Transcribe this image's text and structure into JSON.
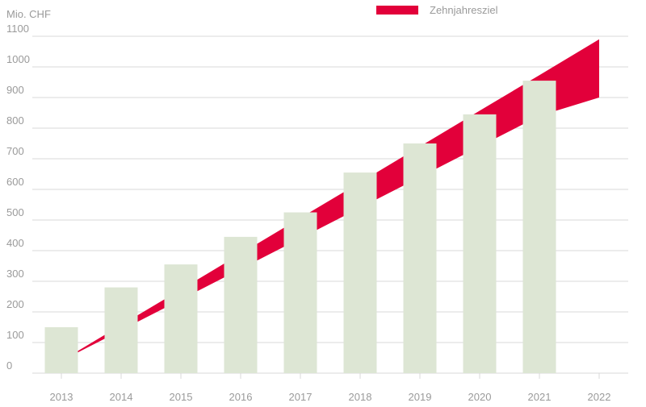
{
  "chart_data": {
    "type": "bar",
    "unit_label": "Mio. CHF",
    "categories": [
      "2013",
      "2014",
      "2015",
      "2016",
      "2017",
      "2018",
      "2019",
      "2020",
      "2021",
      "2022"
    ],
    "series": [
      {
        "values": [
          150,
          280,
          355,
          445,
          525,
          655,
          750,
          845,
          955,
          null
        ],
        "color": "#dde6d4"
      }
    ],
    "target_band": {
      "name": "Zehnjahresziel",
      "color": "#e2003a",
      "lower": [
        40,
        140,
        240,
        340,
        440,
        540,
        640,
        740,
        840,
        900
      ],
      "upper": [
        40,
        157,
        273,
        390,
        507,
        623,
        740,
        857,
        973,
        1090
      ]
    },
    "y_ticks": [
      "0",
      "100",
      "200",
      "300",
      "400",
      "500",
      "600",
      "700",
      "800",
      "900",
      "1000",
      "1100"
    ],
    "ylim": [
      0,
      1100
    ],
    "grid": true,
    "legend_position": "top-right",
    "colors": {
      "grid": "#d9d9d9",
      "text": "#9a9a9a",
      "bar": "#dde6d4",
      "band": "#e2003a"
    }
  }
}
